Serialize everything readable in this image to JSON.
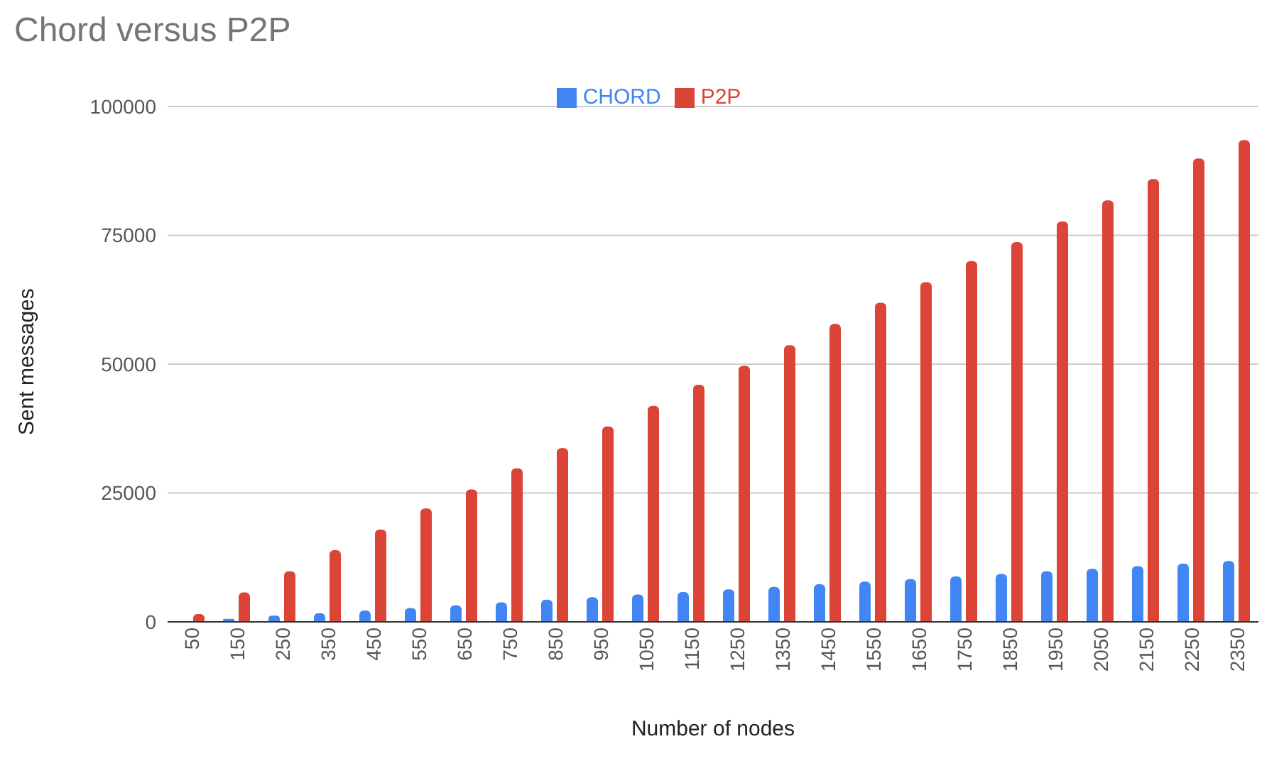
{
  "chart_data": {
    "type": "bar",
    "title": "Chord versus P2P",
    "xlabel": "Number of nodes",
    "ylabel": "Sent messages",
    "categories": [
      "50",
      "150",
      "250",
      "350",
      "450",
      "550",
      "650",
      "750",
      "850",
      "950",
      "1050",
      "1150",
      "1250",
      "1350",
      "1450",
      "1550",
      "1650",
      "1750",
      "1850",
      "1950",
      "2050",
      "2150",
      "2250",
      "2350"
    ],
    "series": [
      {
        "name": "CHORD",
        "color": "#4285f4",
        "values": [
          150,
          600,
          1200,
          1700,
          2200,
          2700,
          3200,
          3800,
          4300,
          4800,
          5300,
          5800,
          6300,
          6800,
          7300,
          7800,
          8300,
          8800,
          9300,
          9800,
          10300,
          10800,
          11300,
          11800
        ]
      },
      {
        "name": "P2P",
        "color": "#db4437",
        "values": [
          1500,
          5700,
          9800,
          13900,
          17900,
          22000,
          25700,
          29800,
          33700,
          37900,
          41900,
          46000,
          49700,
          53700,
          57800,
          61900,
          65900,
          70000,
          73700,
          77700,
          81800,
          85900,
          89900,
          93500
        ]
      }
    ],
    "ylim": [
      0,
      100000
    ],
    "yticks": [
      0,
      25000,
      50000,
      75000,
      100000
    ],
    "grid": "y",
    "legend": "top"
  }
}
